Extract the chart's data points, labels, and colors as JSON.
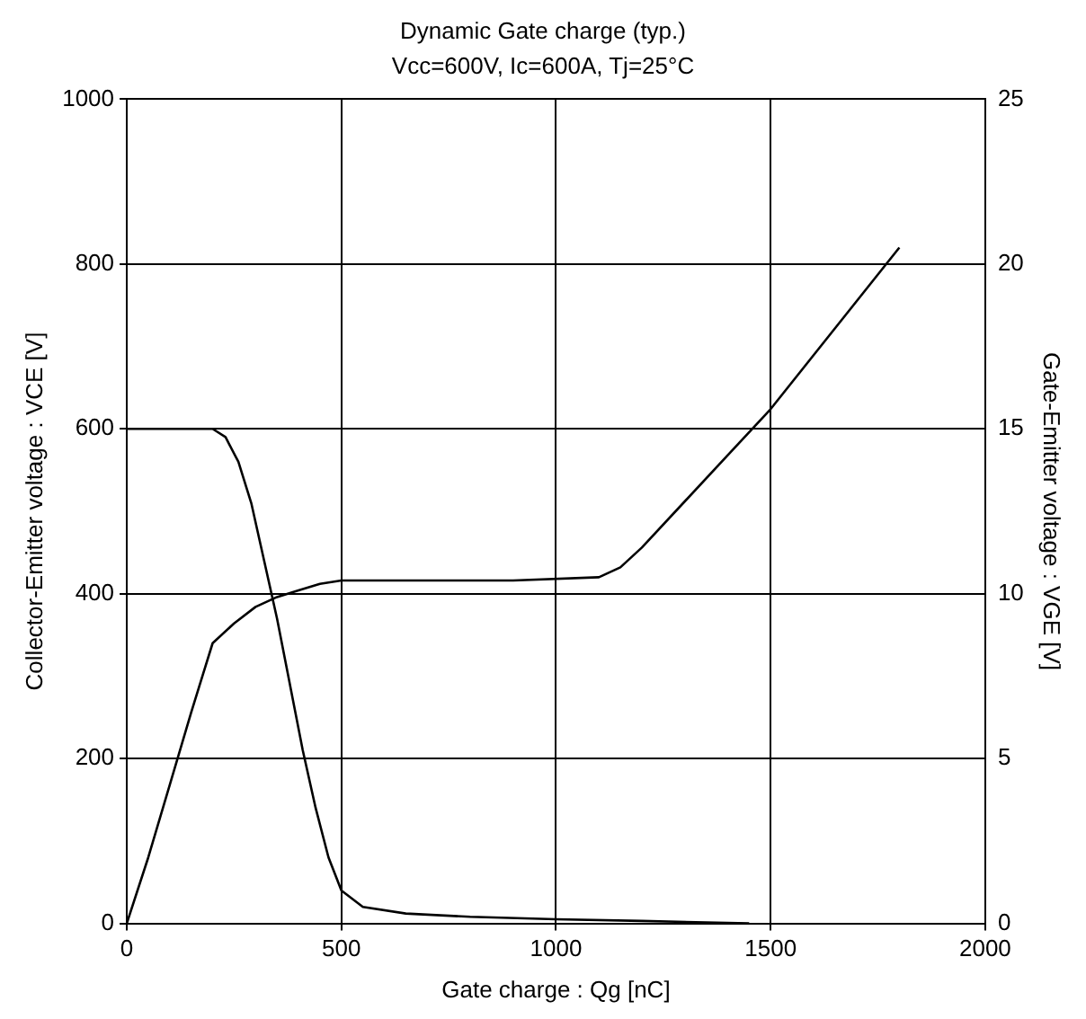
{
  "chart_data": {
    "type": "line",
    "title": "Dynamic Gate charge (typ.)",
    "subtitle": "Vcc=600V, Ic=600A, Tj=25°C",
    "xlabel": "Gate charge : Qg [nC]",
    "ylabel": "Collector-Emitter voltage : VCE [V]",
    "y2label": "Gate-Emitter voltage : VGE [V]",
    "xlim": [
      0,
      2000
    ],
    "xticks": [
      0,
      500,
      1000,
      1500,
      2000
    ],
    "ylim": [
      0,
      1000
    ],
    "yticks": [
      0,
      200,
      400,
      600,
      800,
      1000
    ],
    "y2lim": [
      0,
      25
    ],
    "y2ticks": [
      0,
      5,
      10,
      15,
      20,
      25
    ],
    "grid": true,
    "legend": false,
    "marker": "none",
    "line_style": "solid",
    "series": [
      {
        "color": "#000000",
        "x": [
          0,
          200,
          230,
          260,
          290,
          320,
          350,
          380,
          410,
          440,
          470,
          500,
          550,
          650,
          800,
          1000,
          1200,
          1450
        ],
        "values": [
          600,
          600,
          590,
          560,
          510,
          440,
          370,
          290,
          210,
          140,
          80,
          40,
          20,
          12,
          8,
          5,
          3,
          0
        ]
      },
      {
        "color": "#000000",
        "axis": "y2",
        "x": [
          0,
          50,
          100,
          150,
          200,
          250,
          300,
          350,
          400,
          450,
          500,
          700,
          900,
          1100,
          1150,
          1200,
          1300,
          1500,
          1800
        ],
        "values": [
          0,
          2,
          4.2,
          6.4,
          8.5,
          9.1,
          9.6,
          9.9,
          10.1,
          10.3,
          10.4,
          10.4,
          10.4,
          10.5,
          10.8,
          11.4,
          12.8,
          15.6,
          20.5
        ]
      }
    ]
  }
}
